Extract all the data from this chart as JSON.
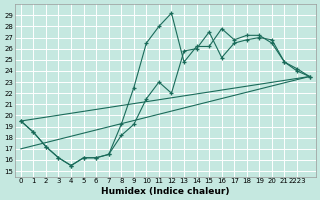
{
  "xlabel": "Humidex (Indice chaleur)",
  "bg_color": "#c5e8e0",
  "grid_color": "#ffffff",
  "line_color": "#1a6b5a",
  "xlim": [
    -0.5,
    23.5
  ],
  "ylim": [
    14.5,
    30.0
  ],
  "ytick_vals": [
    15,
    16,
    17,
    18,
    19,
    20,
    21,
    22,
    23,
    24,
    25,
    26,
    27,
    28,
    29
  ],
  "xtick_vals": [
    0,
    1,
    2,
    3,
    4,
    5,
    6,
    7,
    8,
    9,
    10,
    11,
    12,
    13,
    14,
    15,
    16,
    17,
    18,
    19,
    20,
    21,
    22,
    23
  ],
  "xtick_labels": [
    "0",
    "1",
    "2",
    "3",
    "4",
    "5",
    "6",
    "7",
    "8",
    "9",
    "10",
    "11",
    "12",
    "13",
    "14",
    "15",
    "16",
    "17",
    "18",
    "19",
    "20",
    "21",
    "2223",
    ""
  ],
  "curve1_x": [
    0,
    1,
    2,
    3,
    4,
    5,
    6,
    7,
    8,
    9,
    10,
    11,
    12,
    13,
    14,
    15,
    16,
    17,
    18,
    19,
    20,
    21,
    22,
    23
  ],
  "curve1_y": [
    19.5,
    18.5,
    17.2,
    16.2,
    15.5,
    16.2,
    16.2,
    16.5,
    19.2,
    22.5,
    26.5,
    28.0,
    29.2,
    24.8,
    26.2,
    26.2,
    27.8,
    26.8,
    27.2,
    27.2,
    26.5,
    24.8,
    24.2,
    23.5
  ],
  "curve2_x": [
    0,
    1,
    2,
    3,
    4,
    5,
    6,
    7,
    8,
    9,
    10,
    11,
    12,
    13,
    14,
    15,
    16,
    17,
    18,
    19,
    20,
    21,
    22,
    23
  ],
  "curve2_y": [
    19.5,
    18.5,
    17.2,
    16.2,
    15.5,
    16.2,
    16.2,
    16.5,
    18.2,
    19.2,
    21.5,
    23.0,
    22.0,
    25.8,
    26.0,
    27.5,
    25.2,
    26.5,
    26.8,
    27.0,
    26.8,
    24.8,
    24.0,
    23.5
  ],
  "line1_x": [
    0,
    23
  ],
  "line1_y": [
    19.5,
    23.5
  ],
  "line2_x": [
    0,
    23
  ],
  "line2_y": [
    17.0,
    23.5
  ]
}
